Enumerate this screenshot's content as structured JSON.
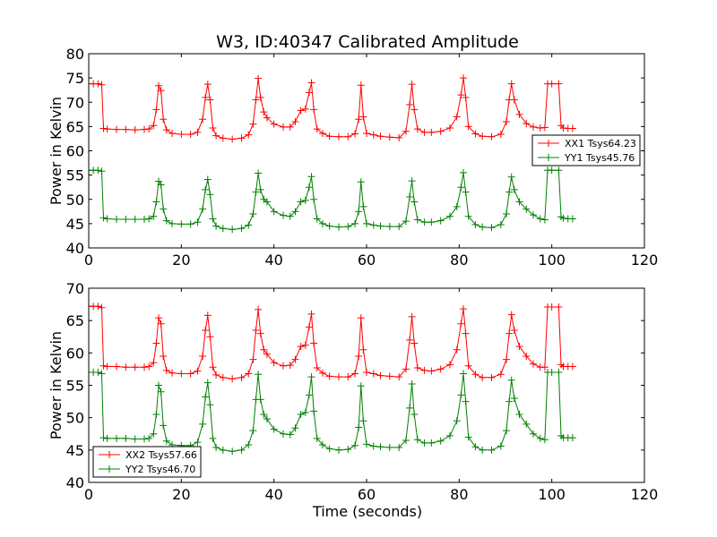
{
  "figure": {
    "title": "W3, ID:40347 Calibrated Amplitude",
    "xlabel": "Time (seconds)"
  },
  "colors": {
    "XX": "#ff0000",
    "YY": "#008000"
  },
  "chart_data": [
    {
      "type": "line",
      "title": "W3, ID:40347 Calibrated Amplitude",
      "xlabel": "",
      "ylabel": "Power in Kelvin",
      "xlim": [
        0,
        120
      ],
      "ylim": [
        40,
        80
      ],
      "xticks": [
        0,
        20,
        40,
        60,
        80,
        100,
        120
      ],
      "yticks": [
        40,
        45,
        50,
        55,
        60,
        65,
        70,
        75,
        80
      ],
      "grid": false,
      "legend_position": "center-right",
      "marker": "+",
      "series": [
        {
          "name": "XX1 Tsys64.23",
          "color": "#ff0000",
          "x": [
            0,
            1,
            2,
            2.8,
            3.2,
            4,
            6,
            8,
            10,
            12,
            13,
            14,
            14.6,
            15.1,
            15.6,
            16.1,
            16.8,
            18,
            20,
            22,
            23.5,
            24.6,
            25.2,
            25.7,
            26.2,
            26.8,
            27.5,
            29,
            31,
            33,
            34.5,
            35.5,
            36.1,
            36.6,
            37.1,
            37.8,
            38.5,
            40,
            42,
            43.5,
            44.6,
            45.8,
            46.8,
            47.6,
            48.1,
            48.6,
            49.3,
            50.5,
            52,
            54,
            56,
            57.5,
            58.3,
            58.8,
            59.3,
            60,
            61.5,
            63,
            65,
            67,
            68.5,
            69.3,
            69.8,
            70.3,
            71,
            72.5,
            74,
            76,
            78,
            79.5,
            80.4,
            80.9,
            81.4,
            82,
            83.5,
            85,
            87,
            89,
            90.2,
            90.8,
            91.3,
            91.9,
            93,
            94.5,
            96,
            97.5,
            98.5,
            99.1,
            100,
            101.5,
            102,
            102.5,
            103.5,
            104.5
          ],
          "y": [
            73.8,
            73.8,
            73.8,
            73.6,
            64.6,
            64.5,
            64.4,
            64.4,
            64.3,
            64.4,
            64.5,
            65.2,
            68.5,
            73.4,
            72.4,
            66.5,
            64.3,
            63.6,
            63.4,
            63.4,
            63.8,
            66.5,
            71.0,
            73.7,
            70.5,
            64.7,
            63.1,
            62.6,
            62.4,
            62.6,
            63.3,
            65.5,
            70.5,
            74.9,
            71.0,
            68.0,
            66.8,
            65.5,
            64.9,
            64.9,
            66.0,
            68.3,
            68.6,
            72.0,
            74.0,
            68.5,
            64.5,
            63.6,
            63.0,
            62.9,
            62.9,
            63.5,
            66.5,
            73.5,
            67.0,
            63.6,
            63.3,
            63.0,
            62.8,
            62.7,
            64.0,
            69.5,
            73.7,
            68.5,
            64.5,
            63.8,
            63.8,
            64.0,
            64.7,
            67.0,
            71.5,
            75.0,
            71.0,
            65.0,
            63.5,
            63.0,
            62.9,
            63.4,
            66.0,
            70.5,
            73.8,
            70.5,
            67.5,
            65.6,
            64.9,
            64.7,
            64.8,
            73.8,
            73.8,
            73.8,
            65.2,
            64.7,
            64.6,
            64.6
          ]
        },
        {
          "name": "YY1 Tsys45.76",
          "color": "#008000",
          "x": [
            0,
            1,
            2,
            2.8,
            3.2,
            4,
            6,
            8,
            10,
            12,
            13,
            14,
            14.6,
            15.1,
            15.6,
            16.1,
            16.8,
            18,
            20,
            22,
            23.5,
            24.6,
            25.2,
            25.7,
            26.2,
            26.8,
            27.5,
            29,
            31,
            33,
            34.5,
            35.5,
            36.1,
            36.6,
            37.1,
            37.8,
            38.5,
            40,
            42,
            43.5,
            44.6,
            45.8,
            46.8,
            47.6,
            48.1,
            48.6,
            49.3,
            50.5,
            52,
            54,
            56,
            57.5,
            58.3,
            58.8,
            59.3,
            60,
            61.5,
            63,
            65,
            67,
            68.5,
            69.3,
            69.8,
            70.3,
            71,
            72.5,
            74,
            76,
            78,
            79.5,
            80.4,
            80.9,
            81.4,
            82,
            83.5,
            85,
            87,
            89,
            90.2,
            90.8,
            91.3,
            91.9,
            93,
            94.5,
            96,
            97.5,
            98.5,
            99.1,
            100,
            101.5,
            102,
            102.5,
            103.5,
            104.5
          ],
          "y": [
            56.0,
            56.0,
            56.0,
            55.8,
            46.2,
            46.0,
            45.9,
            45.9,
            45.9,
            45.9,
            46.0,
            46.5,
            49.5,
            53.7,
            53.0,
            48.0,
            45.6,
            45.0,
            44.9,
            44.9,
            45.3,
            48.0,
            52.0,
            54.1,
            51.0,
            46.0,
            44.5,
            44.0,
            43.8,
            44.0,
            44.7,
            47.0,
            51.5,
            55.4,
            52.0,
            50.0,
            49.5,
            47.5,
            46.7,
            46.5,
            47.5,
            49.5,
            49.8,
            52.5,
            54.7,
            50.0,
            46.0,
            45.0,
            44.5,
            44.3,
            44.4,
            45.0,
            47.5,
            53.6,
            48.5,
            45.0,
            44.7,
            44.5,
            44.4,
            44.4,
            45.5,
            50.5,
            53.8,
            49.5,
            45.8,
            45.3,
            45.3,
            45.6,
            46.5,
            48.5,
            52.5,
            55.5,
            51.5,
            46.5,
            44.8,
            44.3,
            44.2,
            44.8,
            47.0,
            51.5,
            54.6,
            52.0,
            49.5,
            48.0,
            46.8,
            46.0,
            45.8,
            56.0,
            56.0,
            56.0,
            46.4,
            46.1,
            46.0,
            46.0
          ]
        }
      ]
    },
    {
      "type": "line",
      "title": "",
      "xlabel": "Time (seconds)",
      "ylabel": "Power in Kelvin",
      "xlim": [
        0,
        120
      ],
      "ylim": [
        40,
        70
      ],
      "xticks": [
        0,
        20,
        40,
        60,
        80,
        100,
        120
      ],
      "yticks": [
        40,
        45,
        50,
        55,
        60,
        65,
        70
      ],
      "grid": false,
      "legend_position": "lower-left",
      "marker": "+",
      "series": [
        {
          "name": "XX2 Tsys57.66",
          "color": "#ff0000",
          "x": [
            0,
            1,
            2,
            2.8,
            3.2,
            4,
            6,
            8,
            10,
            12,
            13,
            14,
            14.6,
            15.1,
            15.6,
            16.1,
            16.8,
            18,
            20,
            22,
            23.5,
            24.6,
            25.2,
            25.7,
            26.2,
            26.8,
            27.5,
            29,
            31,
            33,
            34.5,
            35.5,
            36.1,
            36.6,
            37.1,
            37.8,
            38.5,
            40,
            42,
            43.5,
            44.6,
            45.8,
            46.8,
            47.6,
            48.1,
            48.6,
            49.3,
            50.5,
            52,
            54,
            56,
            57.5,
            58.3,
            58.8,
            59.3,
            60,
            61.5,
            63,
            65,
            67,
            68.5,
            69.3,
            69.8,
            70.3,
            71,
            72.5,
            74,
            76,
            78,
            79.5,
            80.4,
            80.9,
            81.4,
            82,
            83.5,
            85,
            87,
            89,
            90.2,
            90.8,
            91.3,
            91.9,
            93,
            94.5,
            96,
            97.5,
            98.5,
            99.1,
            100,
            101.5,
            102,
            102.5,
            103.5,
            104.5
          ],
          "y": [
            67.2,
            67.2,
            67.2,
            67.0,
            58.0,
            57.9,
            57.9,
            57.8,
            57.8,
            57.8,
            57.9,
            58.5,
            61.5,
            65.4,
            64.5,
            59.5,
            57.3,
            56.9,
            56.8,
            56.8,
            57.2,
            59.5,
            63.5,
            65.8,
            62.5,
            57.8,
            56.6,
            56.2,
            56.0,
            56.2,
            56.8,
            59.0,
            63.5,
            66.7,
            63.0,
            60.5,
            59.8,
            58.5,
            58.0,
            58.1,
            59.0,
            61.0,
            61.2,
            64.0,
            66.0,
            61.5,
            57.7,
            56.9,
            56.4,
            56.3,
            56.3,
            56.8,
            59.5,
            65.4,
            60.5,
            57.0,
            56.8,
            56.5,
            56.4,
            56.3,
            57.5,
            62.0,
            65.6,
            61.5,
            57.7,
            57.3,
            57.2,
            57.5,
            58.2,
            60.5,
            64.5,
            66.8,
            63.0,
            58.0,
            56.7,
            56.2,
            56.2,
            56.7,
            59.0,
            63.0,
            65.9,
            63.5,
            61.0,
            59.5,
            58.3,
            57.8,
            57.8,
            67.1,
            67.1,
            67.1,
            58.2,
            57.9,
            57.9,
            57.9
          ]
        },
        {
          "name": "YY2 Tsys46.70",
          "color": "#008000",
          "x": [
            0,
            1,
            2,
            2.8,
            3.2,
            4,
            6,
            8,
            10,
            12,
            13,
            14,
            14.6,
            15.1,
            15.6,
            16.1,
            16.8,
            18,
            20,
            22,
            23.5,
            24.6,
            25.2,
            25.7,
            26.2,
            26.8,
            27.5,
            29,
            31,
            33,
            34.5,
            35.5,
            36.1,
            36.6,
            37.1,
            37.8,
            38.5,
            40,
            42,
            43.5,
            44.6,
            45.8,
            46.8,
            47.6,
            48.1,
            48.6,
            49.3,
            50.5,
            52,
            54,
            56,
            57.5,
            58.3,
            58.8,
            59.3,
            60,
            61.5,
            63,
            65,
            67,
            68.5,
            69.3,
            69.8,
            70.3,
            71,
            72.5,
            74,
            76,
            78,
            79.5,
            80.4,
            80.9,
            81.4,
            82,
            83.5,
            85,
            87,
            89,
            90.2,
            90.8,
            91.3,
            91.9,
            93,
            94.5,
            96,
            97.5,
            98.5,
            99.1,
            100,
            101.5,
            102,
            102.5,
            103.5,
            104.5
          ],
          "y": [
            57.0,
            57.0,
            57.0,
            56.8,
            46.9,
            46.8,
            46.8,
            46.8,
            46.7,
            46.7,
            46.8,
            47.5,
            50.5,
            55.0,
            54.0,
            48.8,
            46.4,
            45.8,
            45.7,
            45.7,
            46.2,
            49.0,
            53.2,
            55.4,
            52.0,
            46.8,
            45.4,
            45.0,
            44.8,
            45.0,
            45.8,
            48.0,
            52.8,
            56.7,
            52.8,
            50.5,
            49.8,
            48.2,
            47.5,
            47.4,
            48.4,
            50.5,
            50.8,
            53.5,
            56.3,
            51.0,
            46.8,
            45.8,
            45.2,
            45.0,
            45.1,
            45.7,
            48.5,
            54.9,
            49.5,
            45.9,
            45.6,
            45.5,
            45.4,
            45.4,
            46.5,
            51.5,
            55.2,
            50.5,
            46.6,
            46.1,
            46.1,
            46.4,
            47.2,
            49.5,
            53.5,
            56.8,
            52.5,
            47.0,
            45.5,
            45.0,
            45.0,
            45.6,
            48.0,
            52.5,
            55.8,
            53.0,
            50.5,
            49.0,
            47.5,
            46.8,
            46.6,
            57.0,
            57.0,
            57.0,
            47.2,
            46.9,
            46.9,
            46.9
          ]
        }
      ]
    }
  ]
}
